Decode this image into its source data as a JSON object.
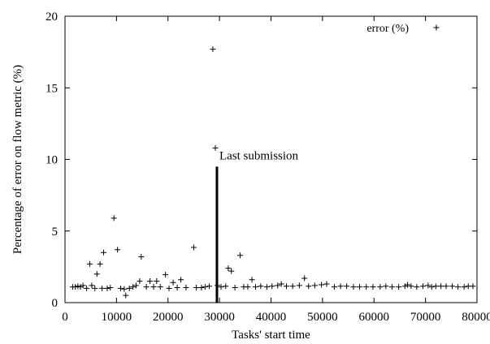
{
  "chart_data": {
    "type": "scatter",
    "xlabel": "Tasks' start time",
    "ylabel": "Percentage of error on flow metric (%)",
    "xlim": [
      0,
      80000
    ],
    "ylim": [
      0,
      20
    ],
    "xticks": [
      0,
      10000,
      20000,
      30000,
      40000,
      50000,
      60000,
      70000,
      80000
    ],
    "yticks": [
      0,
      5,
      10,
      15,
      20
    ],
    "grid": false,
    "legend_position": "top-right",
    "marker": "+",
    "series": [
      {
        "name": "error (%)",
        "color": "#000000",
        "points": [
          [
            1500,
            1.1
          ],
          [
            2000,
            1.1
          ],
          [
            2500,
            1.15
          ],
          [
            3000,
            1.1
          ],
          [
            3500,
            1.2
          ],
          [
            4200,
            1.0
          ],
          [
            4800,
            2.7
          ],
          [
            5200,
            1.2
          ],
          [
            5800,
            1.0
          ],
          [
            6200,
            2.0
          ],
          [
            6800,
            2.7
          ],
          [
            7200,
            1.0
          ],
          [
            7500,
            3.5
          ],
          [
            8200,
            1.0
          ],
          [
            8800,
            1.05
          ],
          [
            9500,
            5.9
          ],
          [
            10200,
            3.7
          ],
          [
            10800,
            1.0
          ],
          [
            11500,
            0.95
          ],
          [
            11800,
            0.5
          ],
          [
            12500,
            1.0
          ],
          [
            13200,
            1.1
          ],
          [
            13800,
            1.2
          ],
          [
            14500,
            1.5
          ],
          [
            14800,
            3.2
          ],
          [
            15800,
            1.1
          ],
          [
            16500,
            1.5
          ],
          [
            17200,
            1.1
          ],
          [
            17800,
            1.5
          ],
          [
            18500,
            1.1
          ],
          [
            19500,
            1.95
          ],
          [
            20200,
            1.0
          ],
          [
            21000,
            1.4
          ],
          [
            21800,
            1.05
          ],
          [
            22500,
            1.6
          ],
          [
            23500,
            1.05
          ],
          [
            25000,
            3.85
          ],
          [
            25500,
            1.05
          ],
          [
            26500,
            1.05
          ],
          [
            27200,
            1.1
          ],
          [
            28000,
            1.15
          ],
          [
            28700,
            17.7
          ],
          [
            29200,
            10.8
          ],
          [
            29600,
            1.2
          ],
          [
            30300,
            1.1
          ],
          [
            31200,
            1.15
          ],
          [
            31700,
            2.4
          ],
          [
            32300,
            2.2
          ],
          [
            33000,
            1.05
          ],
          [
            34000,
            3.3
          ],
          [
            34700,
            1.1
          ],
          [
            35500,
            1.1
          ],
          [
            36300,
            1.6
          ],
          [
            37000,
            1.1
          ],
          [
            38000,
            1.15
          ],
          [
            39200,
            1.1
          ],
          [
            40200,
            1.15
          ],
          [
            41300,
            1.2
          ],
          [
            42000,
            1.3
          ],
          [
            43000,
            1.15
          ],
          [
            44200,
            1.15
          ],
          [
            45500,
            1.2
          ],
          [
            46500,
            1.7
          ],
          [
            47300,
            1.15
          ],
          [
            48500,
            1.2
          ],
          [
            49800,
            1.25
          ],
          [
            50800,
            1.3
          ],
          [
            52300,
            1.1
          ],
          [
            53500,
            1.15
          ],
          [
            54700,
            1.15
          ],
          [
            56000,
            1.1
          ],
          [
            57200,
            1.1
          ],
          [
            58500,
            1.1
          ],
          [
            59800,
            1.1
          ],
          [
            61200,
            1.1
          ],
          [
            62300,
            1.15
          ],
          [
            63500,
            1.1
          ],
          [
            64800,
            1.1
          ],
          [
            66000,
            1.15
          ],
          [
            66500,
            1.25
          ],
          [
            67200,
            1.15
          ],
          [
            68300,
            1.1
          ],
          [
            69500,
            1.15
          ],
          [
            70500,
            1.2
          ],
          [
            71200,
            1.1
          ],
          [
            72000,
            1.15
          ],
          [
            73000,
            1.15
          ],
          [
            74000,
            1.15
          ],
          [
            75200,
            1.15
          ],
          [
            76300,
            1.1
          ],
          [
            77500,
            1.1
          ],
          [
            78300,
            1.15
          ],
          [
            79200,
            1.15
          ]
        ]
      }
    ],
    "annotations": [
      {
        "type": "vertical-bar",
        "x": 29500,
        "y_from": 0,
        "y_to": 9.5,
        "label": "Last submission"
      }
    ]
  }
}
